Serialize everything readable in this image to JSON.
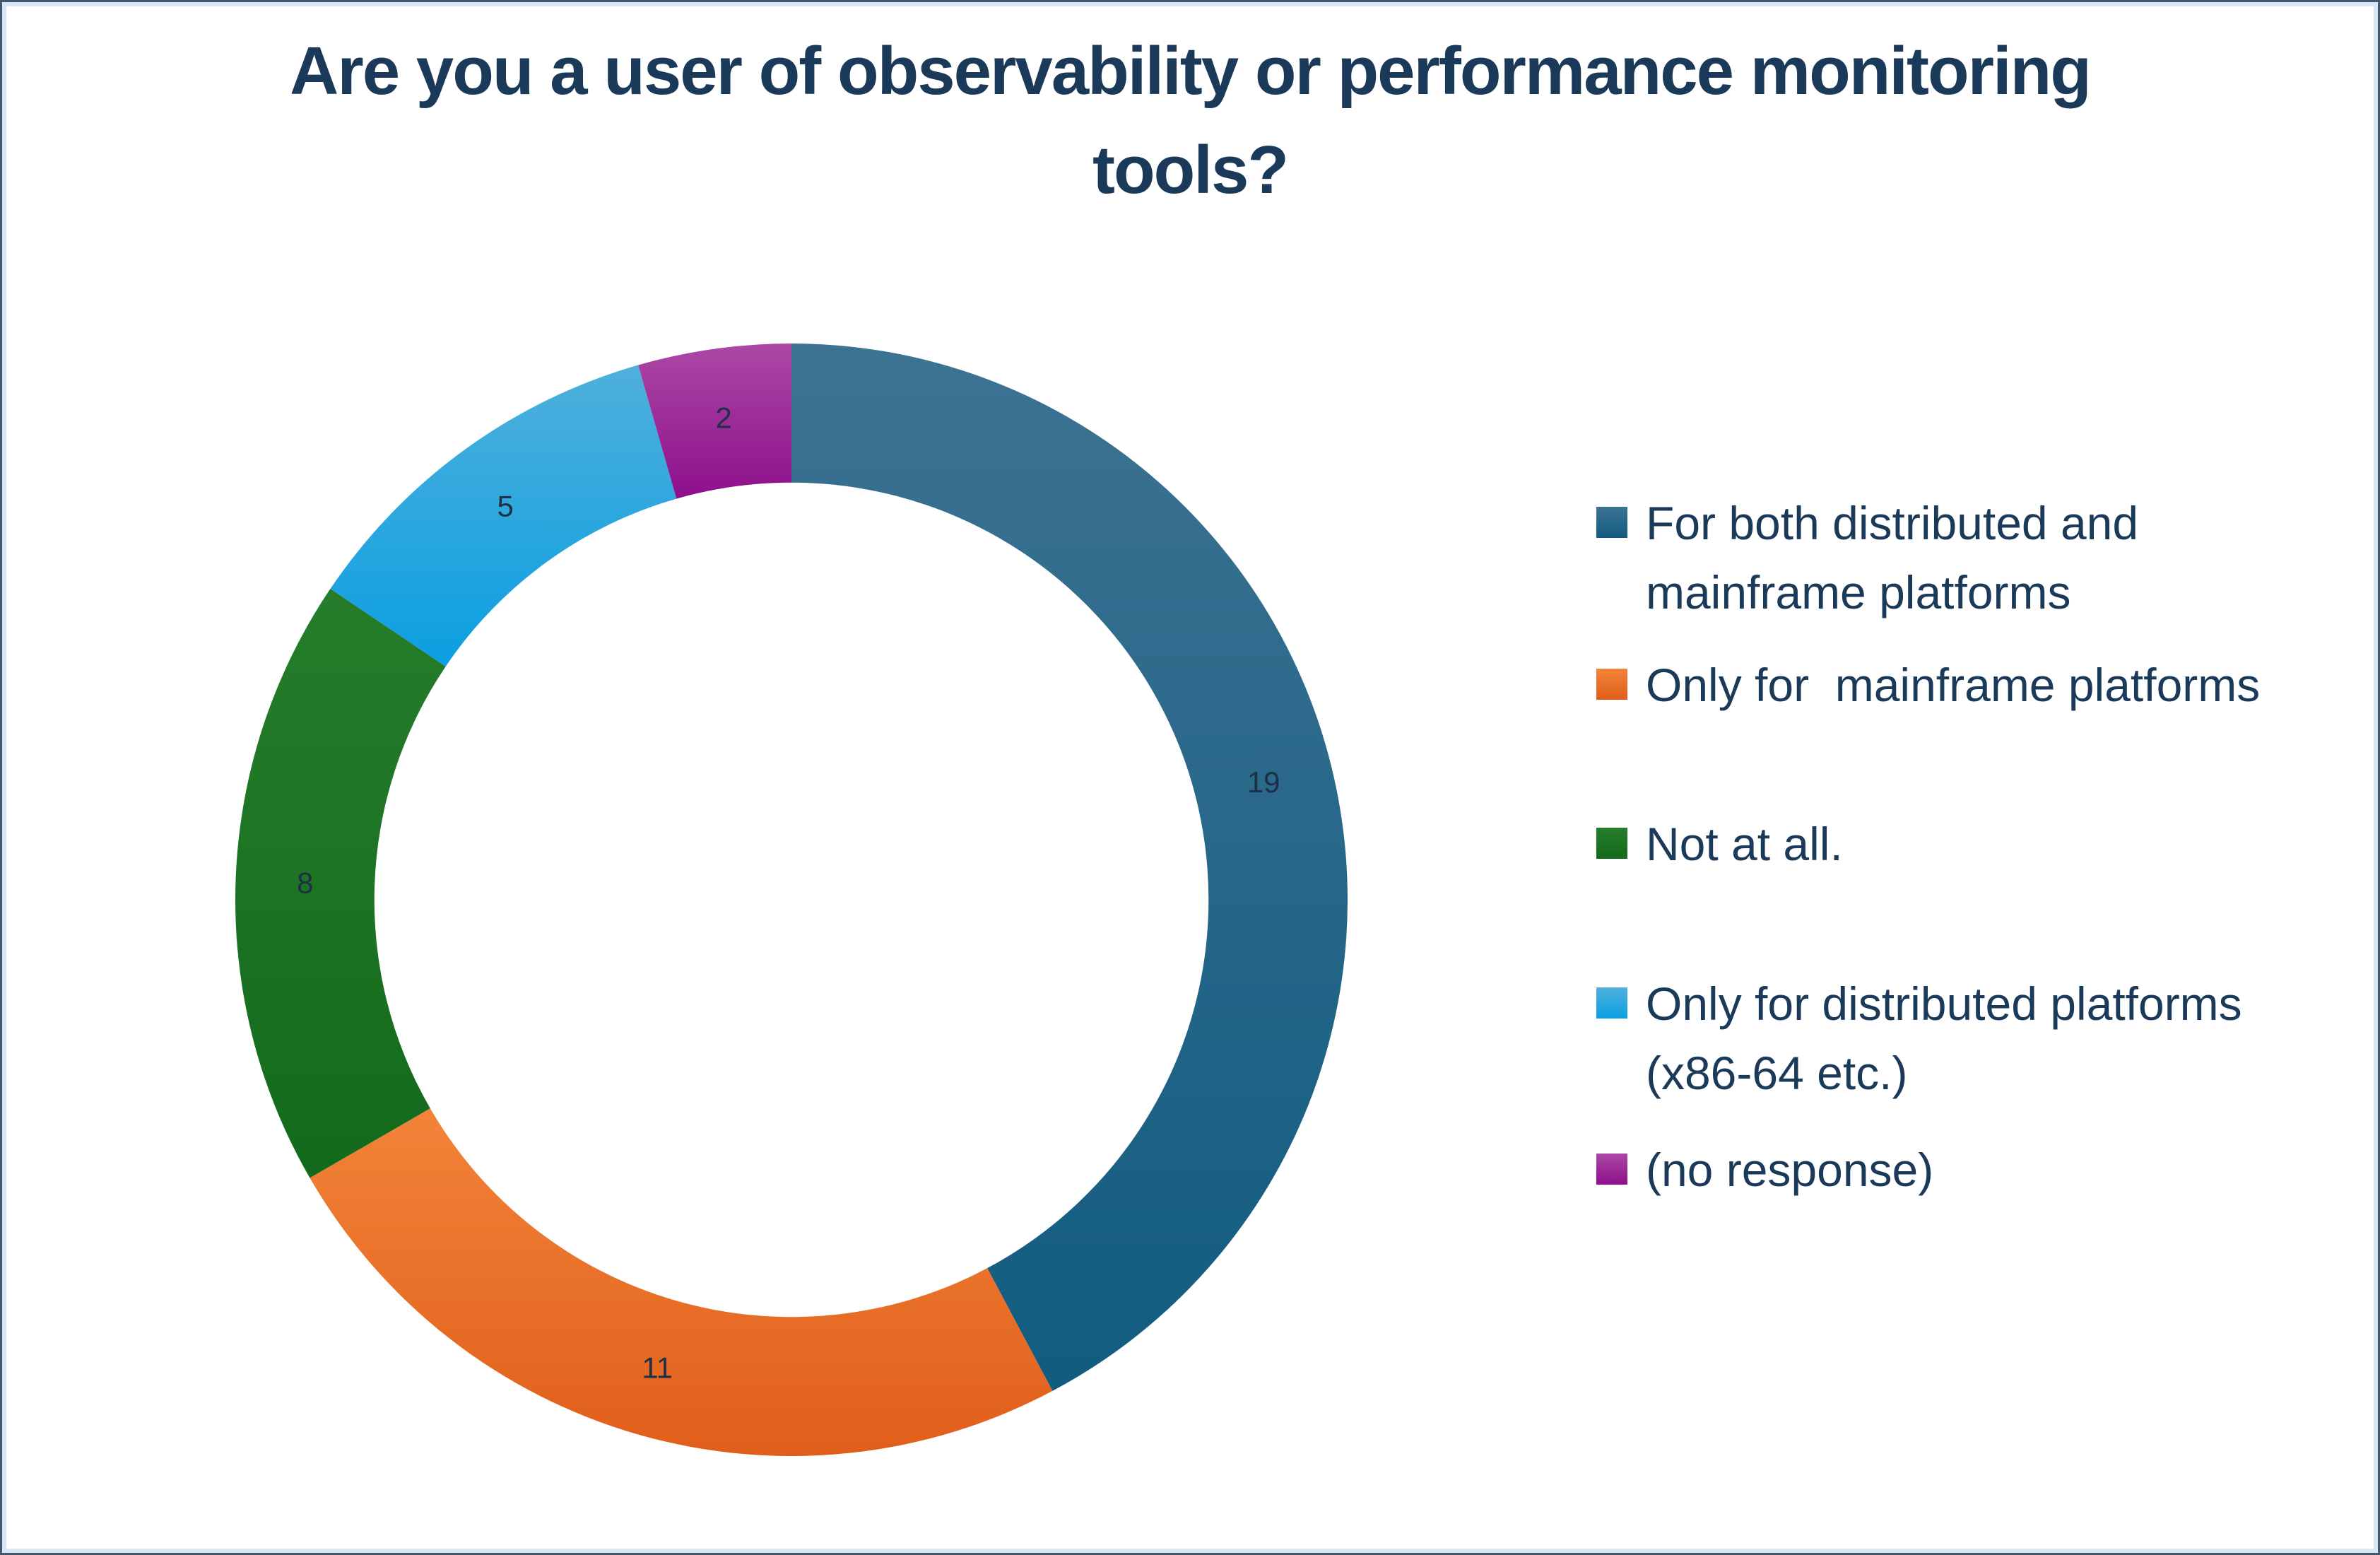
{
  "title": "Are you a user of observability or performance monitoring\ntools?",
  "chart_data": {
    "type": "pie",
    "subtype": "donut",
    "title": "Are you a user of observability or performance monitoring tools?",
    "categories": [
      "For both distributed and mainframe platforms",
      "Only for  mainframe platforms",
      "Not at all.",
      "Only for distributed platforms (x86-64 etc.)",
      "(no response)"
    ],
    "values": [
      19,
      11,
      8,
      5,
      2
    ],
    "data_labels": [
      "19",
      "11",
      "8",
      "5",
      "2"
    ],
    "total": 45,
    "start_angle_deg": 0,
    "direction": "clockwise",
    "hole_ratio": 0.75,
    "legend_position": "right",
    "grid": false,
    "colors_light": [
      "#3D7292",
      "#F28438",
      "#257D2A",
      "#4FB0DC",
      "#AC48A6"
    ],
    "colors_dark": [
      "#115C80",
      "#E05E1B",
      "#146A1C",
      "#0B9FE1",
      "#8D0F8A"
    ],
    "label_color": "#1E3048"
  },
  "legend": {
    "items": [
      {
        "label": "For both distributed and\nmainframe platforms"
      },
      {
        "label": "Only for  mainframe platforms"
      },
      {
        "label": "Not at all."
      },
      {
        "label": "Only for distributed platforms\n(x86-64 etc.)"
      },
      {
        "label": "(no response)"
      }
    ]
  },
  "colors": {
    "title_text": "#1B3A5A",
    "legend_text": "#1B3A5A",
    "data_label_text": "#1E3048",
    "frame_outer": "#44566C",
    "frame_inner": "#D8E6F6",
    "background": "#FFFFFF"
  }
}
